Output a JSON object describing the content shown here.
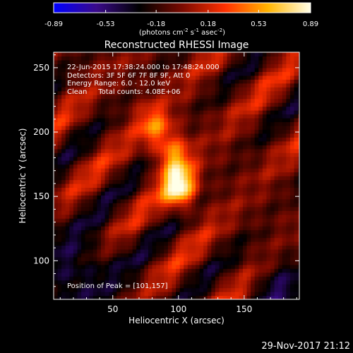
{
  "chart_data": {
    "type": "heatmap",
    "title": "Reconstructed RHESSI Image",
    "xlabel": "Heliocentric X (arcsec)",
    "ylabel": "Heliocentric Y (arcsec)",
    "xlim": [
      5,
      192
    ],
    "ylim": [
      70,
      262
    ],
    "x_ticks": [
      50,
      100,
      150
    ],
    "y_ticks": [
      100,
      150,
      200,
      250
    ],
    "colorbar": {
      "range": [
        -0.89,
        0.89
      ],
      "tick_values": [
        -0.89,
        -0.53,
        -0.18,
        0.18,
        0.53,
        0.89
      ],
      "tick_labels": [
        "-0.89",
        "-0.53",
        "-0.18",
        "0.18",
        "0.53",
        "0.89"
      ],
      "unit_label": "(photons cm",
      "unit_exp1": "-2",
      "unit_mid": " s",
      "unit_exp2": "-1",
      "unit_mid2": " asec",
      "unit_exp3": "-2",
      "unit_end": ")",
      "colormap": [
        "#0000ff",
        "#3a0a8a",
        "#000000",
        "#7a0a00",
        "#ff3000",
        "#ffb400",
        "#ffffe8"
      ]
    },
    "annotations": [
      "22-Jun-2015 17:38:24.000 to 17:48:24.000",
      "Detectors: 3F 5F 6F 7F 8F 9F, Att 0",
      "Energy Range: 6.0 - 12.0 keV",
      "Clean     Total counts: 4.08E+06"
    ],
    "peak_label": "Position of Peak = [101,157]",
    "peak": [
      101,
      157
    ],
    "sources": [
      {
        "x": 101,
        "y": 157,
        "amp": 0.89
      },
      {
        "x": 96,
        "y": 182,
        "amp": 0.55
      },
      {
        "x": 82,
        "y": 205,
        "amp": 0.48
      }
    ]
  },
  "footer": {
    "timestamp": "29-Nov-2017 21:12"
  }
}
